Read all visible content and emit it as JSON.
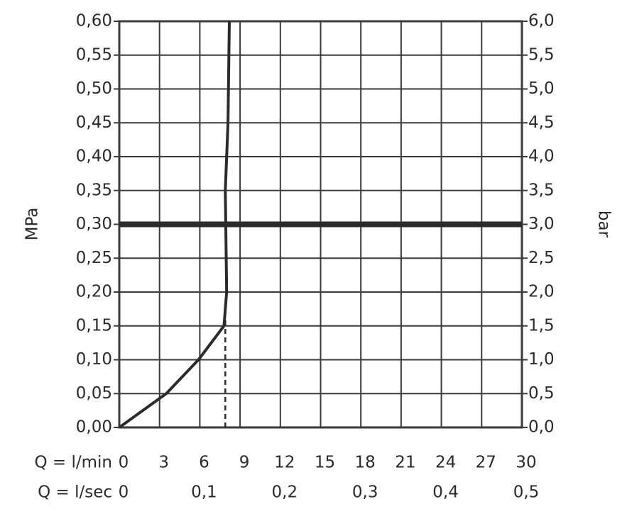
{
  "chart_data": {
    "type": "line",
    "xlabel": "Q = l/min",
    "x2label": "Q = l/sec",
    "ylabel": "MPa",
    "y2label": "bar",
    "xlim": [
      0,
      30
    ],
    "xticks": [
      0,
      3,
      6,
      9,
      12,
      15,
      18,
      21,
      24,
      27,
      30
    ],
    "x2lim": [
      0,
      0.5
    ],
    "x2ticks": [
      0,
      {
        "value": 0.1,
        "label": "0,1"
      },
      {
        "value": 0.2,
        "label": "0,2"
      },
      {
        "value": 0.3,
        "label": "0,3"
      },
      {
        "value": 0.4,
        "label": "0,4"
      },
      {
        "value": 0.5,
        "label": "0,5"
      }
    ],
    "ylim": [
      0,
      0.6
    ],
    "yticks": [
      {
        "value": 0,
        "label": "0,00"
      },
      {
        "value": 0.05,
        "label": "0,05"
      },
      {
        "value": 0.1,
        "label": "0,10"
      },
      {
        "value": 0.15,
        "label": "0,15"
      },
      {
        "value": 0.2,
        "label": "0,20"
      },
      {
        "value": 0.25,
        "label": "0,25"
      },
      {
        "value": 0.3,
        "label": "0,30"
      },
      {
        "value": 0.35,
        "label": "0,35"
      },
      {
        "value": 0.4,
        "label": "0,40"
      },
      {
        "value": 0.45,
        "label": "0,45"
      },
      {
        "value": 0.5,
        "label": "0,50"
      },
      {
        "value": 0.55,
        "label": "0,55"
      },
      {
        "value": 0.6,
        "label": "0,60"
      }
    ],
    "y2lim": [
      0,
      6
    ],
    "y2ticks": [
      {
        "value": 0,
        "label": "0,0"
      },
      {
        "value": 0.5,
        "label": "0,5"
      },
      {
        "value": 1,
        "label": "1,0"
      },
      {
        "value": 1.5,
        "label": "1,5"
      },
      {
        "value": 2,
        "label": "2,0"
      },
      {
        "value": 2.5,
        "label": "2,5"
      },
      {
        "value": 3,
        "label": "3,0"
      },
      {
        "value": 3.5,
        "label": "3,5"
      },
      {
        "value": 4,
        "label": "4,0"
      },
      {
        "value": 4.5,
        "label": "4,5"
      },
      {
        "value": 5,
        "label": "5,0"
      },
      {
        "value": 5.5,
        "label": "5,5"
      },
      {
        "value": 6,
        "label": "6,0"
      }
    ],
    "grid": true,
    "series": [
      {
        "color": "#2b2b2b",
        "dashed": false,
        "x": [
          0,
          3.5,
          5.9,
          7.8,
          8.0,
          7.9,
          8.1,
          8.2
        ],
        "values": [
          0,
          0.05,
          0.1,
          0.15,
          0.2,
          0.35,
          0.45,
          0.6
        ]
      },
      {
        "color": "#2b2b2b",
        "dashed": true,
        "x": [
          7.9,
          7.9
        ],
        "values": [
          0,
          0.18
        ]
      }
    ],
    "reference_lines": [
      {
        "axis": "y",
        "value": 0.3,
        "color": "#2b2b2b"
      }
    ]
  }
}
